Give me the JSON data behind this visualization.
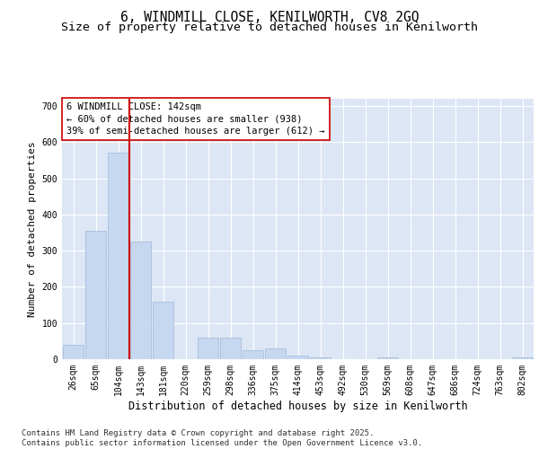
{
  "title1": "6, WINDMILL CLOSE, KENILWORTH, CV8 2GQ",
  "title2": "Size of property relative to detached houses in Kenilworth",
  "xlabel": "Distribution of detached houses by size in Kenilworth",
  "ylabel": "Number of detached properties",
  "categories": [
    "26sqm",
    "65sqm",
    "104sqm",
    "143sqm",
    "181sqm",
    "220sqm",
    "259sqm",
    "298sqm",
    "336sqm",
    "375sqm",
    "414sqm",
    "453sqm",
    "492sqm",
    "530sqm",
    "569sqm",
    "608sqm",
    "647sqm",
    "686sqm",
    "724sqm",
    "763sqm",
    "802sqm"
  ],
  "values": [
    40,
    355,
    570,
    325,
    160,
    0,
    60,
    60,
    25,
    30,
    10,
    5,
    0,
    0,
    5,
    0,
    0,
    0,
    0,
    0,
    5
  ],
  "bar_color": "#c5d8f0",
  "bar_edge_color": "#a0b8d8",
  "vline_color": "#cc0000",
  "vline_x": 2.5,
  "annotation_text": "6 WINDMILL CLOSE: 142sqm\n← 60% of detached houses are smaller (938)\n39% of semi-detached houses are larger (612) →",
  "annotation_box_color": "#ffffff",
  "annotation_box_edge": "#cc0000",
  "ylim": [
    0,
    720
  ],
  "yticks": [
    0,
    100,
    200,
    300,
    400,
    500,
    600,
    700
  ],
  "background_color": "#dde6f5",
  "grid_color": "#ffffff",
  "footer": "Contains HM Land Registry data © Crown copyright and database right 2025.\nContains public sector information licensed under the Open Government Licence v3.0.",
  "title1_fontsize": 10.5,
  "title2_fontsize": 9.5,
  "xlabel_fontsize": 8.5,
  "ylabel_fontsize": 8,
  "tick_fontsize": 7,
  "annotation_fontsize": 7.5,
  "footer_fontsize": 6.5
}
